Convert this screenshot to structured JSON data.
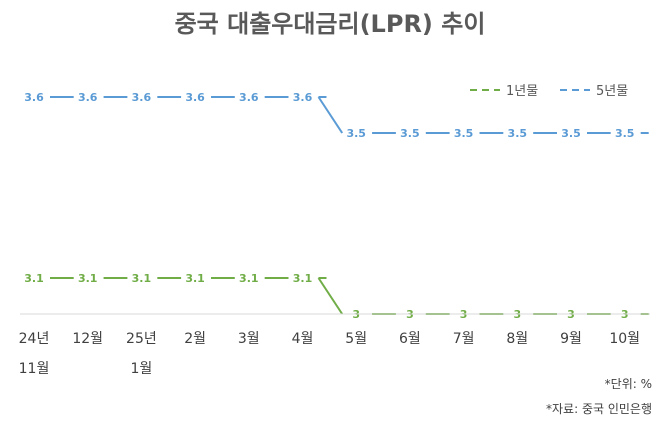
{
  "chart_data": {
    "type": "line",
    "title": "중국 대출우대금리(LPR) 추이",
    "categories": [
      [
        "24년",
        "11월"
      ],
      [
        "12월"
      ],
      [
        "25년",
        "1월"
      ],
      [
        "2월"
      ],
      [
        "3월"
      ],
      [
        "4월"
      ],
      [
        "5월"
      ],
      [
        "6월"
      ],
      [
        "7월"
      ],
      [
        "8월"
      ],
      [
        "9월"
      ],
      [
        "10월"
      ]
    ],
    "series": [
      {
        "name": "1년물",
        "color": "#70AD47",
        "values": [
          3.1,
          3.1,
          3.1,
          3.1,
          3.1,
          3.1,
          3,
          3,
          3,
          3,
          3,
          3
        ]
      },
      {
        "name": "5년물",
        "color": "#5B9BD5",
        "values": [
          3.6,
          3.6,
          3.6,
          3.6,
          3.6,
          3.6,
          3.5,
          3.5,
          3.5,
          3.5,
          3.5,
          3.5
        ]
      }
    ],
    "legend": "top-right",
    "grid": false,
    "dashed": true
  },
  "notes": {
    "unit": "*단위: %",
    "source": "*자료: 중국 인민은행"
  }
}
